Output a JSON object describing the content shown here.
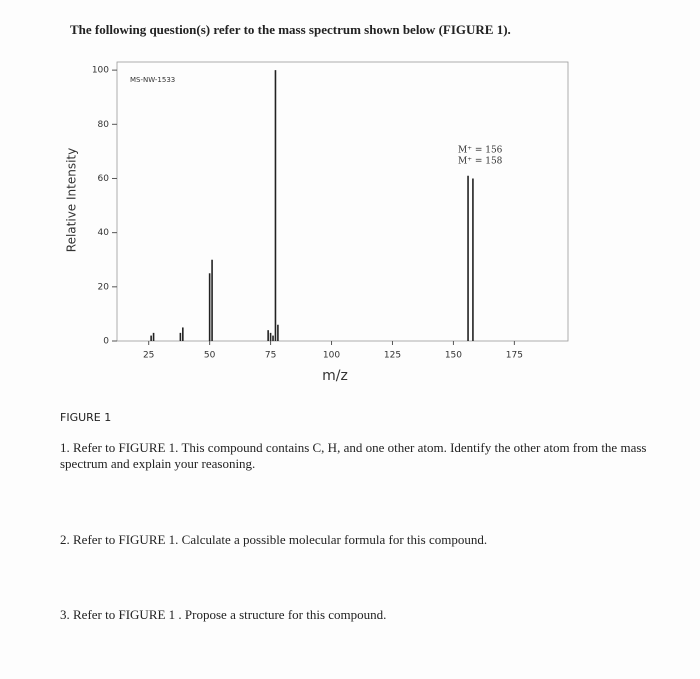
{
  "header": {
    "title": "The following question(s) refer to the mass spectrum shown below (FIGURE 1)."
  },
  "chart_data": {
    "type": "bar",
    "title": "MS-NW-1533",
    "xlabel": "m/z",
    "ylabel": "Relative Intensity",
    "x": [
      26,
      27,
      38,
      39,
      50,
      51,
      74,
      75,
      76,
      77,
      78,
      156,
      158
    ],
    "values": [
      2,
      3,
      3,
      5,
      25,
      30,
      4,
      3,
      2,
      100,
      6,
      61,
      60
    ],
    "color": "#222222",
    "xlim": [
      12,
      197
    ],
    "xticks": [
      25,
      50,
      75,
      100,
      125,
      150,
      175
    ],
    "ylim": [
      0,
      103
    ],
    "yticks": [
      0,
      20,
      40,
      60,
      80,
      100
    ],
    "annotations": [
      "M⁺ = 156",
      "M⁺ = 158"
    ]
  },
  "figure_caption": "FIGURE 1",
  "questions": [
    "1. Refer to FIGURE 1. This compound contains C, H, and one other atom. Identify the other atom from the mass spectrum and explain your reasoning.",
    "2. Refer to FIGURE 1. Calculate a possible molecular formula for this compound.",
    "3. Refer to FIGURE 1 . Propose a structure for this compound."
  ]
}
